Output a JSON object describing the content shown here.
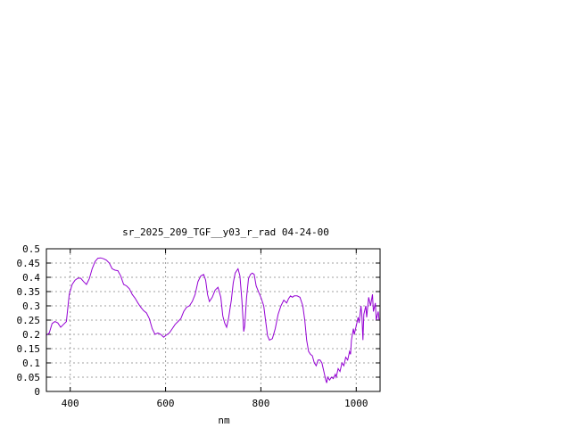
{
  "chart_data": {
    "type": "line",
    "title": "sr_2025_209_TGF__y03_r_rad 04-24-00",
    "xlabel": "nm",
    "ylabel": "",
    "xlim": [
      350,
      1050
    ],
    "ylim": [
      0,
      0.5
    ],
    "x_ticks": [
      400,
      600,
      800,
      1000
    ],
    "x_tick_labels": [
      "400",
      "600",
      "800",
      "1000"
    ],
    "y_ticks": [
      0,
      0.05,
      0.1,
      0.15,
      0.2,
      0.25,
      0.3,
      0.35,
      0.4,
      0.45,
      0.5
    ],
    "y_tick_labels": [
      "0",
      "0.05",
      "0.1",
      "0.15",
      "0.2",
      "0.25",
      "0.3",
      "0.35",
      "0.4",
      "0.45",
      "0.5"
    ],
    "grid": true,
    "series": [
      {
        "color": "#9400d3",
        "points": [
          [
            350,
            0.197
          ],
          [
            356,
            0.205
          ],
          [
            362,
            0.238
          ],
          [
            368,
            0.245
          ],
          [
            374,
            0.24
          ],
          [
            380,
            0.225
          ],
          [
            386,
            0.235
          ],
          [
            392,
            0.245
          ],
          [
            398,
            0.34
          ],
          [
            404,
            0.375
          ],
          [
            410,
            0.39
          ],
          [
            416,
            0.397
          ],
          [
            422,
            0.397
          ],
          [
            428,
            0.385
          ],
          [
            434,
            0.375
          ],
          [
            440,
            0.395
          ],
          [
            446,
            0.43
          ],
          [
            452,
            0.455
          ],
          [
            458,
            0.467
          ],
          [
            464,
            0.468
          ],
          [
            470,
            0.465
          ],
          [
            476,
            0.46
          ],
          [
            482,
            0.45
          ],
          [
            488,
            0.43
          ],
          [
            494,
            0.425
          ],
          [
            500,
            0.423
          ],
          [
            506,
            0.405
          ],
          [
            512,
            0.375
          ],
          [
            518,
            0.37
          ],
          [
            524,
            0.36
          ],
          [
            530,
            0.34
          ],
          [
            536,
            0.327
          ],
          [
            542,
            0.31
          ],
          [
            548,
            0.295
          ],
          [
            554,
            0.283
          ],
          [
            560,
            0.275
          ],
          [
            566,
            0.255
          ],
          [
            572,
            0.22
          ],
          [
            578,
            0.2
          ],
          [
            584,
            0.205
          ],
          [
            590,
            0.2
          ],
          [
            596,
            0.19
          ],
          [
            602,
            0.198
          ],
          [
            608,
            0.205
          ],
          [
            614,
            0.22
          ],
          [
            620,
            0.235
          ],
          [
            626,
            0.245
          ],
          [
            632,
            0.255
          ],
          [
            638,
            0.28
          ],
          [
            644,
            0.295
          ],
          [
            650,
            0.3
          ],
          [
            656,
            0.315
          ],
          [
            662,
            0.34
          ],
          [
            668,
            0.385
          ],
          [
            674,
            0.405
          ],
          [
            680,
            0.41
          ],
          [
            684,
            0.39
          ],
          [
            688,
            0.34
          ],
          [
            692,
            0.315
          ],
          [
            698,
            0.33
          ],
          [
            704,
            0.355
          ],
          [
            710,
            0.365
          ],
          [
            716,
            0.33
          ],
          [
            720,
            0.265
          ],
          [
            724,
            0.24
          ],
          [
            728,
            0.225
          ],
          [
            732,
            0.255
          ],
          [
            738,
            0.32
          ],
          [
            742,
            0.38
          ],
          [
            746,
            0.415
          ],
          [
            752,
            0.43
          ],
          [
            756,
            0.405
          ],
          [
            760,
            0.32
          ],
          [
            764,
            0.21
          ],
          [
            766,
            0.23
          ],
          [
            770,
            0.33
          ],
          [
            774,
            0.395
          ],
          [
            778,
            0.41
          ],
          [
            782,
            0.415
          ],
          [
            786,
            0.41
          ],
          [
            790,
            0.37
          ],
          [
            796,
            0.345
          ],
          [
            800,
            0.33
          ],
          [
            806,
            0.3
          ],
          [
            810,
            0.245
          ],
          [
            814,
            0.195
          ],
          [
            818,
            0.18
          ],
          [
            824,
            0.185
          ],
          [
            830,
            0.22
          ],
          [
            836,
            0.27
          ],
          [
            842,
            0.3
          ],
          [
            848,
            0.32
          ],
          [
            854,
            0.31
          ],
          [
            858,
            0.325
          ],
          [
            862,
            0.335
          ],
          [
            866,
            0.33
          ],
          [
            870,
            0.335
          ],
          [
            876,
            0.335
          ],
          [
            882,
            0.33
          ],
          [
            888,
            0.3
          ],
          [
            892,
            0.25
          ],
          [
            896,
            0.18
          ],
          [
            900,
            0.14
          ],
          [
            904,
            0.13
          ],
          [
            908,
            0.125
          ],
          [
            912,
            0.1
          ],
          [
            916,
            0.09
          ],
          [
            920,
            0.11
          ],
          [
            924,
            0.11
          ],
          [
            928,
            0.1
          ],
          [
            932,
            0.07
          ],
          [
            936,
            0.04
          ],
          [
            938,
            0.03
          ],
          [
            940,
            0.05
          ],
          [
            944,
            0.04
          ],
          [
            948,
            0.05
          ],
          [
            952,
            0.045
          ],
          [
            956,
            0.06
          ],
          [
            958,
            0.05
          ],
          [
            962,
            0.08
          ],
          [
            966,
            0.07
          ],
          [
            970,
            0.1
          ],
          [
            974,
            0.09
          ],
          [
            978,
            0.12
          ],
          [
            982,
            0.11
          ],
          [
            986,
            0.14
          ],
          [
            988,
            0.13
          ],
          [
            990,
            0.18
          ],
          [
            994,
            0.22
          ],
          [
            996,
            0.2
          ],
          [
            1000,
            0.23
          ],
          [
            1004,
            0.26
          ],
          [
            1006,
            0.24
          ],
          [
            1010,
            0.3
          ],
          [
            1012,
            0.26
          ],
          [
            1014,
            0.18
          ],
          [
            1016,
            0.27
          ],
          [
            1020,
            0.3
          ],
          [
            1022,
            0.26
          ],
          [
            1026,
            0.33
          ],
          [
            1030,
            0.3
          ],
          [
            1034,
            0.34
          ],
          [
            1036,
            0.28
          ],
          [
            1040,
            0.31
          ],
          [
            1042,
            0.25
          ],
          [
            1046,
            0.28
          ],
          [
            1048,
            0.25
          ]
        ]
      }
    ]
  }
}
